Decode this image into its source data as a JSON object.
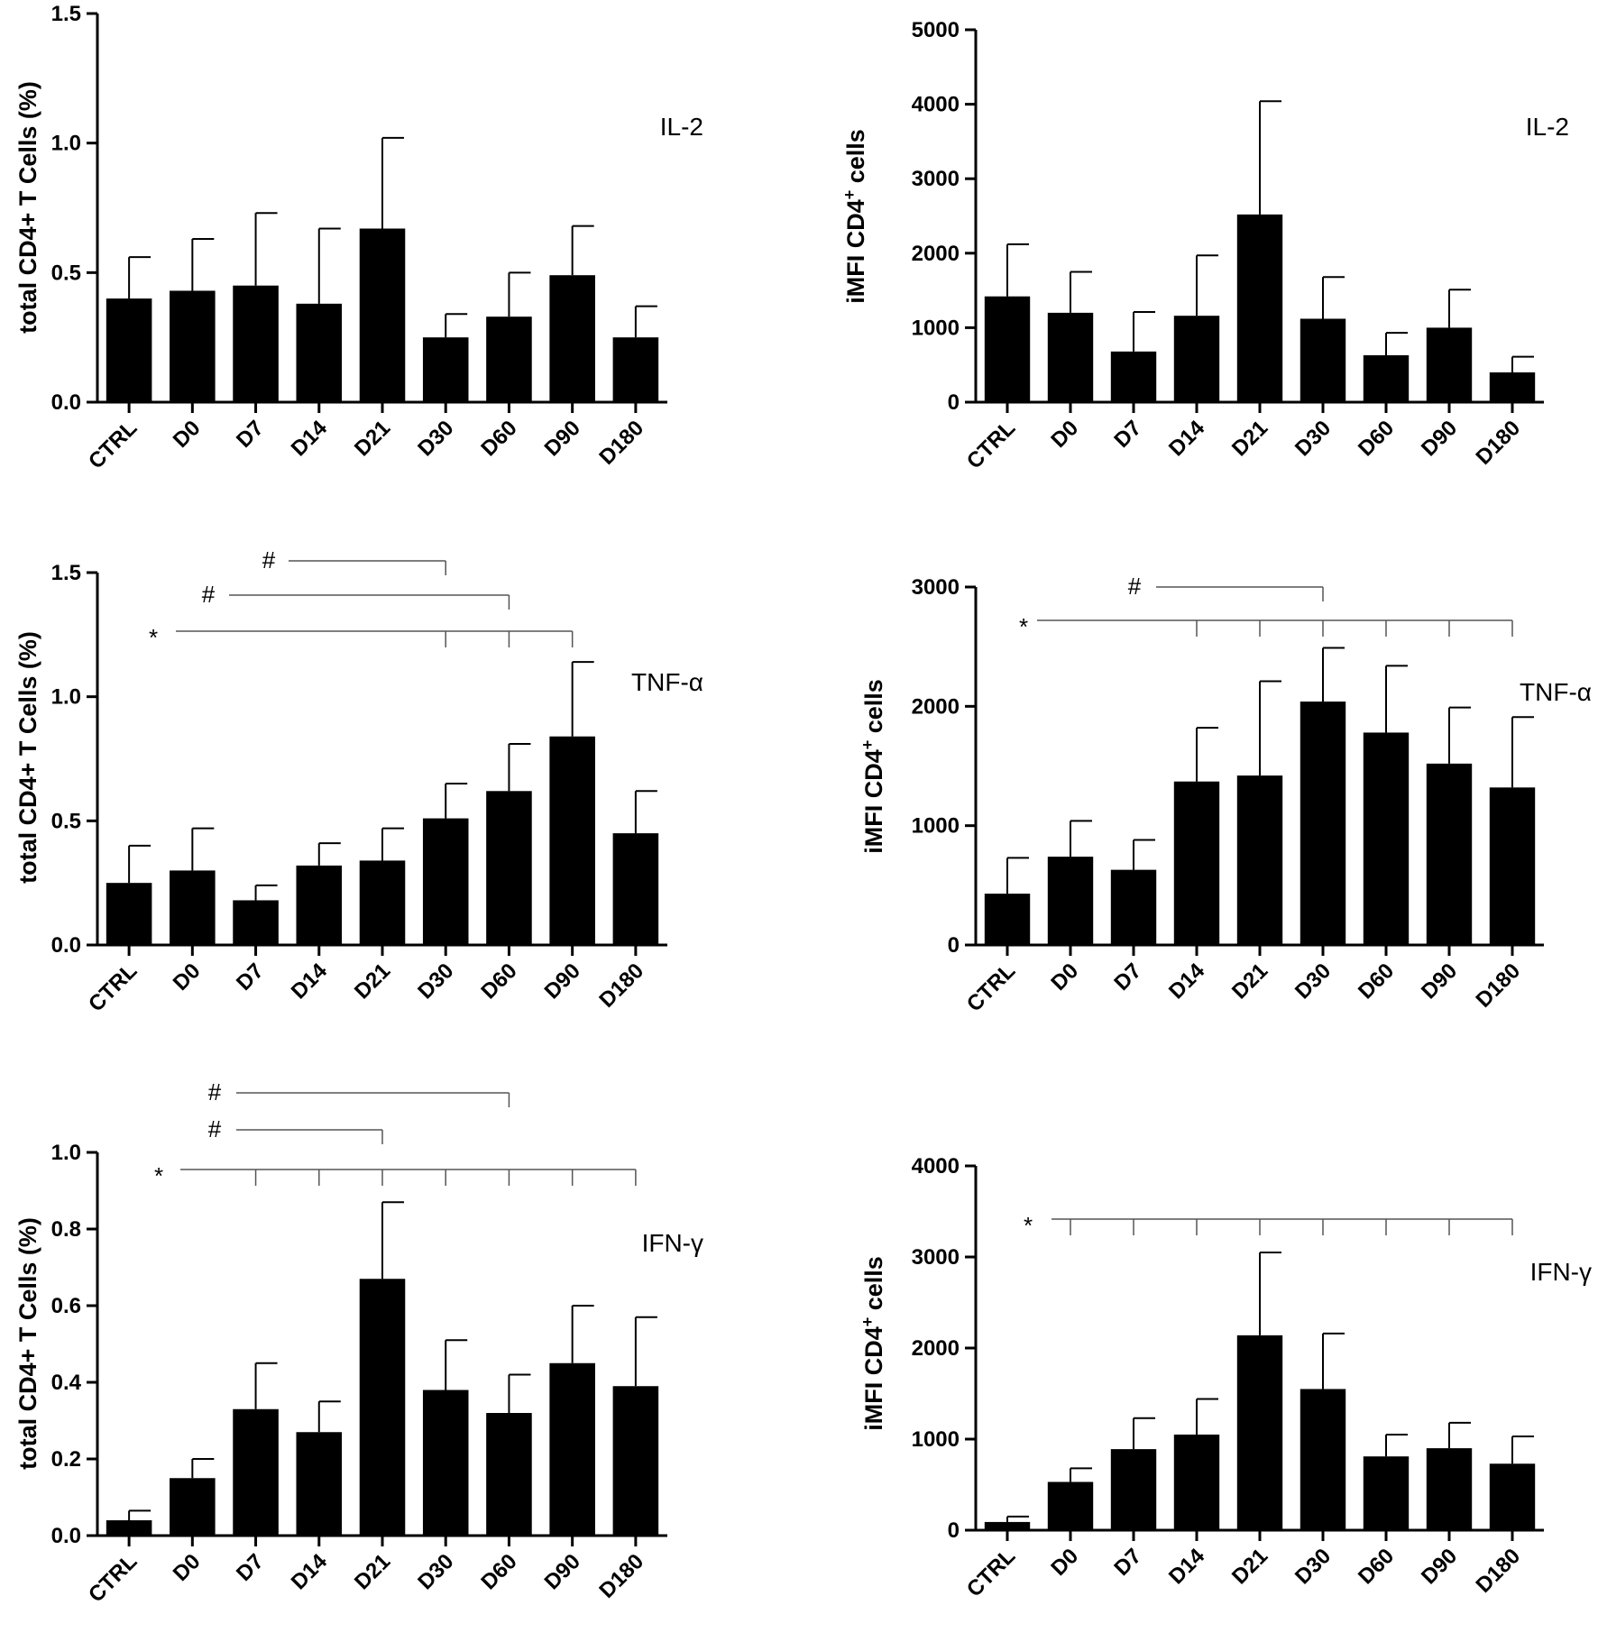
{
  "chart_data": [
    {
      "type": "bar",
      "title": "IL-2",
      "xlabel": "",
      "ylabel": "total CD4+ T Cells (%)",
      "categories": [
        "CTRL",
        "D0",
        "D7",
        "D14",
        "D21",
        "D30",
        "D60",
        "D90",
        "D180"
      ],
      "values": [
        0.4,
        0.43,
        0.45,
        0.38,
        0.67,
        0.25,
        0.33,
        0.49,
        0.25
      ],
      "errors": [
        0.16,
        0.2,
        0.28,
        0.29,
        0.35,
        0.09,
        0.17,
        0.19,
        0.12
      ],
      "ylim": [
        0,
        1.5
      ],
      "yticks": [
        "0.0",
        "0.5",
        "1.0",
        "1.5"
      ],
      "significance": []
    },
    {
      "type": "bar",
      "title": "IL-2",
      "xlabel": "",
      "ylabel": "iMFI CD4+ cells",
      "categories": [
        "CTRL",
        "D0",
        "D7",
        "D14",
        "D21",
        "D30",
        "D60",
        "D90",
        "D180"
      ],
      "values": [
        1420,
        1200,
        680,
        1160,
        2520,
        1120,
        630,
        1000,
        400
      ],
      "errors": [
        700,
        550,
        530,
        810,
        1520,
        560,
        300,
        510,
        210
      ],
      "ylim": [
        0,
        5000
      ],
      "yticks": [
        "0",
        "1000",
        "2000",
        "3000",
        "4000",
        "5000"
      ],
      "significance": []
    },
    {
      "type": "bar",
      "title": "TNF-α",
      "xlabel": "",
      "ylabel": "total CD4+ T Cells (%)",
      "categories": [
        "CTRL",
        "D0",
        "D7",
        "D14",
        "D21",
        "D30",
        "D60",
        "D90",
        "D180"
      ],
      "values": [
        0.25,
        0.3,
        0.18,
        0.32,
        0.34,
        0.51,
        0.62,
        0.84,
        0.45
      ],
      "errors": [
        0.15,
        0.17,
        0.06,
        0.09,
        0.13,
        0.14,
        0.19,
        0.3,
        0.17
      ],
      "ylim": [
        0,
        1.5
      ],
      "yticks": [
        "0.0",
        "0.5",
        "1.0",
        "1.5"
      ],
      "significance": [
        {
          "symbol": "#",
          "target": "D30"
        },
        {
          "symbol": "#",
          "target": "D60"
        },
        {
          "symbol": "*",
          "targets": [
            "D30",
            "D60",
            "D90"
          ]
        }
      ]
    },
    {
      "type": "bar",
      "title": "TNF-α",
      "xlabel": "",
      "ylabel": "iMFI CD4+ cells",
      "categories": [
        "CTRL",
        "D0",
        "D7",
        "D14",
        "D21",
        "D30",
        "D60",
        "D90",
        "D180"
      ],
      "values": [
        430,
        740,
        630,
        1370,
        1420,
        2040,
        1780,
        1520,
        1320
      ],
      "errors": [
        300,
        300,
        250,
        450,
        790,
        450,
        560,
        470,
        590
      ],
      "ylim": [
        0,
        3000
      ],
      "yticks": [
        "0",
        "1000",
        "2000",
        "3000"
      ],
      "significance": [
        {
          "symbol": "#",
          "target": "D30"
        },
        {
          "symbol": "*",
          "targets": [
            "D14",
            "D21",
            "D30",
            "D60",
            "D90",
            "D180"
          ]
        }
      ]
    },
    {
      "type": "bar",
      "title": "IFN-γ",
      "xlabel": "",
      "ylabel": "total CD4+ T Cells (%)",
      "categories": [
        "CTRL",
        "D0",
        "D7",
        "D14",
        "D21",
        "D30",
        "D60",
        "D90",
        "D180"
      ],
      "values": [
        0.04,
        0.15,
        0.33,
        0.27,
        0.67,
        0.38,
        0.32,
        0.45,
        0.39
      ],
      "errors": [
        0.025,
        0.05,
        0.12,
        0.08,
        0.2,
        0.13,
        0.1,
        0.15,
        0.18
      ],
      "ylim": [
        0,
        1.0
      ],
      "yticks": [
        "0.0",
        "0.2",
        "0.4",
        "0.6",
        "0.8",
        "1.0"
      ],
      "significance": [
        {
          "symbol": "#",
          "target": "D60"
        },
        {
          "symbol": "#",
          "target": "D21"
        },
        {
          "symbol": "*",
          "targets": [
            "D7",
            "D14",
            "D21",
            "D30",
            "D60",
            "D90",
            "D180"
          ]
        }
      ]
    },
    {
      "type": "bar",
      "title": "IFN-γ",
      "xlabel": "",
      "ylabel": "iMFI CD4+ cells",
      "categories": [
        "CTRL",
        "D0",
        "D7",
        "D14",
        "D21",
        "D30",
        "D60",
        "D90",
        "D180"
      ],
      "values": [
        90,
        530,
        890,
        1050,
        2140,
        1550,
        810,
        900,
        730
      ],
      "errors": [
        60,
        150,
        340,
        390,
        910,
        610,
        240,
        280,
        300
      ],
      "ylim": [
        0,
        4000
      ],
      "yticks": [
        "0",
        "1000",
        "2000",
        "3000",
        "4000"
      ],
      "significance": [
        {
          "symbol": "*",
          "targets": [
            "D0",
            "D7",
            "D14",
            "D21",
            "D30",
            "D60",
            "D90",
            "D180"
          ]
        }
      ]
    }
  ]
}
